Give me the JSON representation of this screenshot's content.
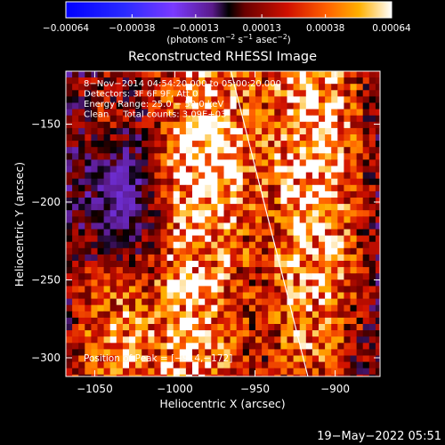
{
  "chart_data": {
    "type": "heatmap",
    "title": "Reconstructed RHESSI Image",
    "xlabel": "Heliocentric X (arcsec)",
    "ylabel": "Heliocentric Y (arcsec)",
    "xlim": [
      -1068,
      -872
    ],
    "ylim": [
      -312,
      -116
    ],
    "x_ticks": [
      -1050,
      -1000,
      -950,
      -900
    ],
    "x_tick_labels": [
      "−1050",
      "−1000",
      "−950",
      "−900"
    ],
    "y_ticks": [
      -300,
      -250,
      -200,
      -150
    ],
    "y_tick_labels": [
      "−300",
      "−250",
      "−200",
      "−150"
    ],
    "colorbar": {
      "min": -0.00064,
      "max": 0.00064,
      "ticks": [
        -0.00064,
        -0.00038,
        -0.00013,
        0.00013,
        0.00038,
        0.00064
      ],
      "tick_labels": [
        "−0.00064",
        "−0.00038",
        "−0.00013",
        "0.00013",
        "0.00038",
        "0.00064"
      ],
      "unit_prefix": "(photons cm",
      "unit_sup1": "−2",
      "unit_mid1": " s",
      "unit_sup2": "−1",
      "unit_mid2": " asec",
      "unit_sup3": "−2",
      "unit_suffix": ")"
    },
    "annotations": [
      "8−Nov−2014 04:54:20.000 to 05:00:20.000",
      "Detectors: 3F 6F 9F, Att 0",
      "Energy Range: 25.0 − 50.0 keV",
      "Clean     Total counts: 3.09E+03"
    ],
    "peak_label": "Position of Peak = [−914,−172]",
    "peak_position": [
      -914,
      -172
    ],
    "limb_line": [
      [
        -965,
        -116
      ],
      [
        -917,
        -312
      ]
    ],
    "ridges": [
      {
        "x": -988,
        "y": -262,
        "sx": 22,
        "sy": 150,
        "amp": 0.00055
      },
      {
        "x": -1040,
        "y": -290,
        "sx": 18,
        "sy": 60,
        "amp": 0.00045
      },
      {
        "x": -914,
        "y": -172,
        "sx": 22,
        "sy": 130,
        "amp": 0.00064
      },
      {
        "x": -975,
        "y": -160,
        "sx": 16,
        "sy": 40,
        "amp": 0.00035
      },
      {
        "x": -1045,
        "y": -140,
        "sx": 14,
        "sy": 25,
        "amp": 0.0002
      }
    ],
    "colors": {
      "background": "#000000",
      "limb": "#ffffff"
    }
  },
  "timestamp": "19−May−2022 05:51"
}
